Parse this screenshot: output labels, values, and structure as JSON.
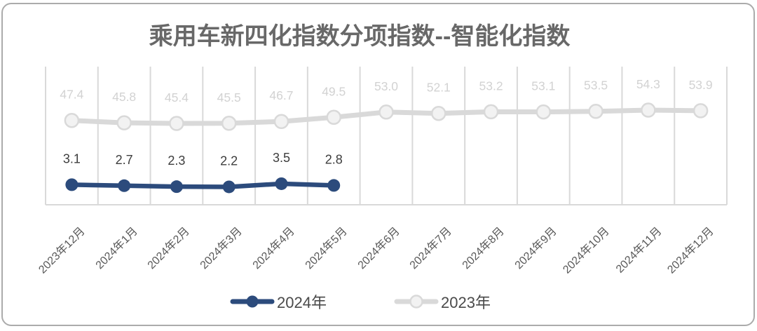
{
  "chart_data": {
    "type": "line",
    "title": "乘用车新四化指数分项指数--智能化指数",
    "categories": [
      "2023年12月",
      "2024年1月",
      "2024年2月",
      "2024年3月",
      "2024年4月",
      "2024年5月",
      "2024年6月",
      "2024年7月",
      "2024年8月",
      "2024年9月",
      "2024年10月",
      "2024年11月",
      "2024年12月"
    ],
    "series": [
      {
        "name": "2024年",
        "color": "#2c4b7c",
        "values": [
          3.1,
          2.7,
          2.3,
          2.2,
          3.5,
          2.8,
          null,
          null,
          null,
          null,
          null,
          null,
          null
        ]
      },
      {
        "name": "2023年",
        "color": "#d9d9d9",
        "values": [
          47.4,
          45.8,
          45.4,
          45.5,
          46.7,
          49.5,
          53.0,
          52.1,
          53.2,
          53.1,
          53.5,
          54.3,
          53.9
        ]
      }
    ],
    "data_labels": true,
    "legend_position": "bottom",
    "grid": "vertical-only",
    "colors": {
      "grid": "#d9d9d9",
      "title_text": "#686868",
      "axis_label_text": "#595959",
      "series_2024_label_text": "#3d3d3d",
      "series_2023_label_text": "#d2d2d2",
      "legend_text": "#4a4a4a",
      "card_border": "#ababab"
    }
  }
}
